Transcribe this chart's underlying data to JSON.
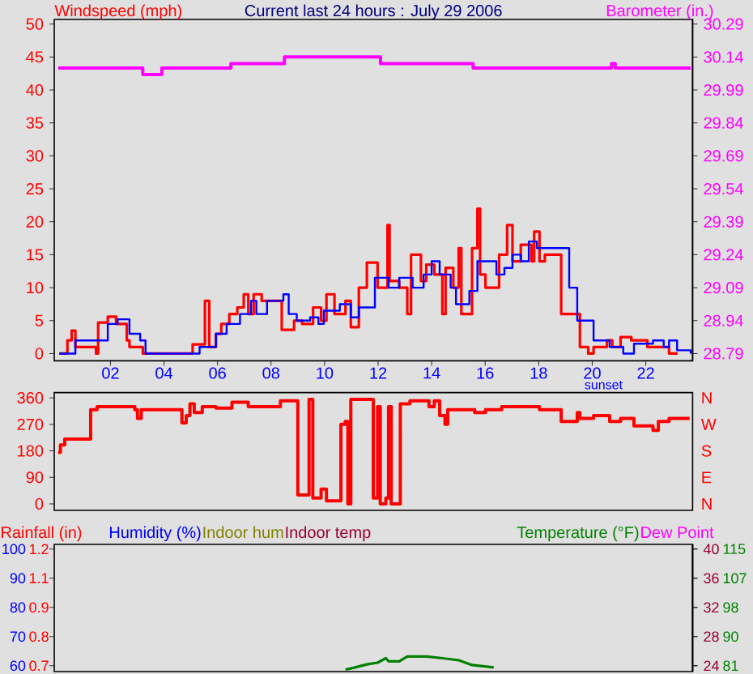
{
  "chart_data": [
    {
      "type": "line",
      "title": "Current last 24 hours : July 29 2006",
      "ylabel": "Windspeed (mph)",
      "y2label": "Barometer (in.)",
      "xlim": [
        -0.1,
        23.75
      ],
      "xticks": [
        {
          "value": 2,
          "label": "02"
        },
        {
          "value": 4,
          "label": "04"
        },
        {
          "value": 6,
          "label": "06"
        },
        {
          "value": 8,
          "label": "08"
        },
        {
          "value": 10,
          "label": "10"
        },
        {
          "value": 12,
          "label": "12"
        },
        {
          "value": 14,
          "label": "14"
        },
        {
          "value": 16,
          "label": "16"
        },
        {
          "value": 18,
          "label": "18"
        },
        {
          "value": 20,
          "label": "20"
        },
        {
          "value": 22,
          "label": "22"
        }
      ],
      "ylim": [
        -1.1,
        50.7
      ],
      "yticks": [
        0,
        5,
        10,
        15,
        20,
        25,
        30,
        35,
        40,
        45,
        50
      ],
      "y2lim": [
        28.757,
        30.311
      ],
      "y2ticks": [
        28.79,
        28.94,
        29.09,
        29.24,
        29.39,
        29.54,
        29.69,
        29.84,
        29.99,
        30.14,
        30.29
      ],
      "annotations": [
        "sunset"
      ],
      "series": [
        {
          "type": "step",
          "color": "#ff0000",
          "x": [
            0.09,
            0.39,
            0.55,
            0.69,
            1.46,
            1.54,
            1.9,
            2.21,
            2.61,
            2.71,
            3.21,
            5.07,
            5.53,
            5.69,
            5.94,
            6.14,
            6.44,
            6.74,
            6.98,
            7.15,
            7.35,
            7.65,
            8.4,
            8.86,
            9.16,
            9.57,
            9.87,
            10.07,
            10.37,
            10.78,
            10.98,
            11.28,
            11.58,
            11.98,
            12.35,
            12.43,
            12.79,
            13.09,
            13.23,
            13.6,
            13.8,
            14.1,
            14.4,
            14.52,
            14.81,
            15.01,
            15.11,
            15.51,
            15.71,
            15.81,
            16.01,
            16.52,
            16.82,
            17.02,
            17.33,
            17.73,
            17.83,
            18.03,
            18.23,
            18.84,
            19.54,
            19.85,
            20.05,
            20.55,
            20.75,
            21.06,
            21.46,
            22.06,
            22.87,
            23.19
          ],
          "values": [
            0,
            2,
            3.5,
            1,
            0,
            4.7,
            5.6,
            4.5,
            2,
            1,
            0,
            1.4,
            8,
            1,
            3,
            4.5,
            6,
            7,
            9,
            6,
            9,
            8,
            3.6,
            5,
            4.5,
            7,
            5,
            9,
            6,
            8,
            4,
            10,
            13.8,
            10,
            19.5,
            11,
            10,
            6,
            15,
            11,
            13.5,
            12,
            6,
            13,
            10,
            16,
            6,
            16,
            22,
            12,
            10,
            15,
            19.5,
            14,
            16.5,
            14,
            18.5,
            14,
            15,
            6,
            1,
            0,
            1,
            2,
            1,
            2.5,
            2,
            1,
            0,
            0
          ]
        },
        {
          "type": "step",
          "color": "#0000ff",
          "x": [
            0.09,
            0.49,
            0.69,
            1.4,
            1.9,
            2.27,
            2.71,
            3.11,
            3.31,
            5.13,
            5.33,
            5.69,
            5.94,
            6.34,
            6.84,
            7.25,
            7.45,
            7.85,
            8.46,
            8.66,
            8.96,
            9.46,
            9.77,
            9.97,
            10.57,
            10.98,
            11.28,
            11.88,
            12.39,
            12.79,
            13.29,
            13.7,
            14.0,
            14.3,
            14.71,
            14.91,
            15.41,
            15.71,
            16.01,
            16.42,
            16.72,
            17.02,
            17.33,
            17.63,
            17.93,
            18.84,
            19.14,
            19.44,
            19.75,
            20.05,
            20.65,
            21.16,
            21.56,
            22.27,
            22.67,
            22.87,
            23.17,
            23.68
          ],
          "values": [
            0,
            0,
            2,
            2,
            4.5,
            5.2,
            3,
            2,
            0,
            0,
            1,
            1,
            3,
            4.5,
            6,
            8,
            6,
            8,
            9,
            6,
            5,
            5.5,
            4.5,
            6.5,
            7.5,
            5.5,
            7,
            11.5,
            10,
            11.5,
            10,
            12,
            14,
            12,
            10,
            7.5,
            9.5,
            14,
            14,
            12,
            13,
            15,
            14,
            17,
            16,
            16,
            10,
            5,
            5,
            2,
            1,
            0,
            1.5,
            2,
            1,
            2,
            0.5,
            0
          ]
        },
        {
          "type": "step",
          "color": "#ff00ff",
          "axis": "y2",
          "x": [
            0.05,
            3.21,
            3.92,
            6.5,
            8.5,
            12.09,
            15.55,
            20.72,
            20.86,
            23.68
          ],
          "values": [
            30.09,
            30.06,
            30.09,
            30.11,
            30.14,
            30.11,
            30.09,
            30.11,
            30.09,
            30.09
          ]
        }
      ]
    },
    {
      "type": "step",
      "color": "#ff0000",
      "xlim": [
        -0.1,
        23.75
      ],
      "ylim": [
        -22,
        378
      ],
      "yticks": [
        0,
        90,
        180,
        270,
        360
      ],
      "annotations": [
        "N",
        "W",
        "S",
        "E",
        "N"
      ],
      "x": [
        0.05,
        0.13,
        0.29,
        1.2,
        1.26,
        1.5,
        2.91,
        3.01,
        3.15,
        4.62,
        4.67,
        4.83,
        4.97,
        5.13,
        5.43,
        5.94,
        6.54,
        7.15,
        8.35,
        8.96,
        9.0,
        9.36,
        9.42,
        9.56,
        9.87,
        10.07,
        10.53,
        10.61,
        10.77,
        10.87,
        10.98,
        11.78,
        11.82,
        11.98,
        12.08,
        12.29,
        12.39,
        12.49,
        12.79,
        12.83,
        13.19,
        13.9,
        14.1,
        14.3,
        14.5,
        14.6,
        15.61,
        16.01,
        16.62,
        18.03,
        18.73,
        18.84,
        19.44,
        19.54,
        20.05,
        20.65,
        21.06,
        21.56,
        22.17,
        22.27,
        22.47,
        22.87,
        23.64
      ],
      "values": [
        175,
        200,
        220,
        220,
        320,
        330,
        320,
        290,
        320,
        320,
        275,
        300,
        340,
        310,
        330,
        325,
        345,
        330,
        350,
        350,
        30,
        30,
        355,
        20,
        50,
        10,
        10,
        270,
        280,
        0,
        355,
        355,
        20,
        330,
        0,
        20,
        330,
        0,
        0,
        340,
        350,
        330,
        350,
        300,
        270,
        320,
        310,
        320,
        330,
        320,
        320,
        280,
        310,
        290,
        300,
        280,
        290,
        265,
        265,
        250,
        280,
        290,
        290
      ]
    },
    {
      "type": "line",
      "ylabel": "Humidity (%)",
      "ylim": [
        58.0,
        101.6
      ],
      "yticks": [
        60,
        70,
        80,
        90,
        100
      ],
      "y2label": "Temperature (°F)",
      "y2lim": [
        79.3,
        116.36
      ],
      "y2ticks": [
        {
          "value": 81,
          "label": "81"
        },
        {
          "value": 89.5,
          "label": "90"
        },
        {
          "value": 98,
          "label": "98"
        },
        {
          "value": 106.5,
          "label": "107"
        },
        {
          "value": 115,
          "label": "115"
        }
      ],
      "y3label": "Indoor temp",
      "y3lim": [
        23.2,
        40.64
      ],
      "y3ticks": [
        24,
        28,
        32,
        36,
        40
      ],
      "xlim": [
        -0.1,
        23.75
      ],
      "annotations": [
        "Rainfall (in)",
        "Indoor hum",
        "Dew Point",
        "1.2",
        "1.1",
        "0.9",
        "0.8",
        "0.7"
      ],
      "series": [
        {
          "type": "line",
          "color": "#008000",
          "axis": "y2",
          "x": [
            10.78,
            11.08,
            11.58,
            11.98,
            12.29,
            12.39,
            12.79,
            13.09,
            13.8,
            14.4,
            15.01,
            15.51,
            16.32
          ],
          "values": [
            79.9,
            80.4,
            81.4,
            81.9,
            83.2,
            82.3,
            82.3,
            83.7,
            83.7,
            83.2,
            82.6,
            81.2,
            80.5
          ]
        }
      ]
    }
  ]
}
